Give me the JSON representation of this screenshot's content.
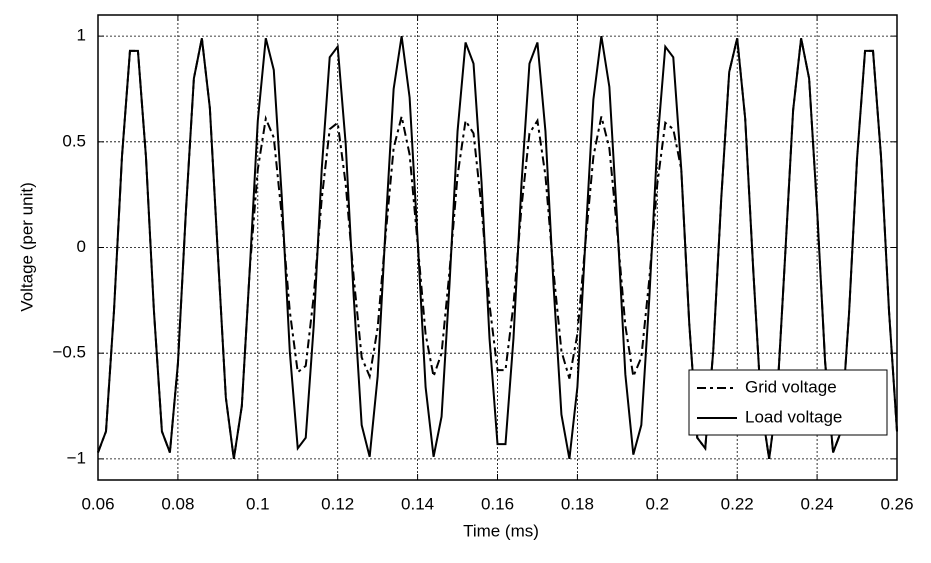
{
  "chart_data": {
    "type": "line",
    "xlabel": "Time (ms)",
    "ylabel": "Voltage (per unit)",
    "x": [
      0.06,
      0.062,
      0.064,
      0.066,
      0.068,
      0.07,
      0.072,
      0.074,
      0.076,
      0.078,
      0.08,
      0.082,
      0.084,
      0.086,
      0.088,
      0.09,
      0.092,
      0.094,
      0.096,
      0.098,
      0.1,
      0.102,
      0.104,
      0.106,
      0.108,
      0.11,
      0.112,
      0.114,
      0.116,
      0.118,
      0.12,
      0.122,
      0.124,
      0.126,
      0.128,
      0.13,
      0.132,
      0.134,
      0.136,
      0.138,
      0.14,
      0.142,
      0.144,
      0.146,
      0.148,
      0.15,
      0.152,
      0.154,
      0.156,
      0.158,
      0.16,
      0.162,
      0.164,
      0.166,
      0.168,
      0.17,
      0.172,
      0.174,
      0.176,
      0.178,
      0.18,
      0.182,
      0.184,
      0.186,
      0.188,
      0.19,
      0.192,
      0.194,
      0.196,
      0.198,
      0.2,
      0.202,
      0.204,
      0.206,
      0.208,
      0.21,
      0.212,
      0.214,
      0.216,
      0.218,
      0.22,
      0.222,
      0.224,
      0.226,
      0.228,
      0.23,
      0.232,
      0.234,
      0.236,
      0.238,
      0.24,
      0.242,
      0.244,
      0.246,
      0.248,
      0.25,
      0.252,
      0.254,
      0.256,
      0.258,
      0.26
    ],
    "series": [
      {
        "name": "Load voltage",
        "color": "#000000",
        "linestyle": "solid",
        "values": [
          -0.97,
          -0.87,
          -0.3,
          0.43,
          0.93,
          0.93,
          0.43,
          -0.3,
          -0.87,
          -0.97,
          -0.55,
          0.17,
          0.8,
          0.99,
          0.66,
          -0.03,
          -0.71,
          -1.0,
          -0.75,
          -0.1,
          0.6,
          0.99,
          0.84,
          0.24,
          -0.49,
          -0.95,
          -0.9,
          -0.37,
          0.37,
          0.9,
          0.95,
          0.49,
          -0.23,
          -0.84,
          -0.99,
          -0.61,
          0.1,
          0.75,
          1.0,
          0.71,
          0.04,
          -0.66,
          -0.99,
          -0.8,
          -0.17,
          0.55,
          0.97,
          0.87,
          0.31,
          -0.43,
          -0.93,
          -0.93,
          -0.43,
          0.3,
          0.87,
          0.97,
          0.55,
          -0.17,
          -0.79,
          -1.0,
          -0.66,
          0.03,
          0.7,
          1.0,
          0.76,
          0.11,
          -0.6,
          -0.98,
          -0.84,
          -0.24,
          0.49,
          0.95,
          0.9,
          0.37,
          -0.36,
          -0.9,
          -0.95,
          -0.49,
          0.23,
          0.83,
          0.99,
          0.61,
          -0.1,
          -0.75,
          -1.0,
          -0.71,
          -0.04,
          0.65,
          0.99,
          0.8,
          0.18,
          -0.54,
          -0.97,
          -0.87,
          -0.31,
          0.42,
          0.93,
          0.93,
          0.43,
          -0.3,
          -0.87
        ]
      },
      {
        "name": "Grid voltage",
        "color": "#000000",
        "linestyle": "dashed",
        "values": [
          -0.97,
          -0.87,
          -0.3,
          0.43,
          0.93,
          0.93,
          0.43,
          -0.3,
          -0.87,
          -0.97,
          -0.55,
          0.17,
          0.8,
          0.99,
          0.66,
          -0.03,
          -0.71,
          -1.0,
          -0.75,
          -0.1,
          0.37,
          0.61,
          0.52,
          0.15,
          -0.3,
          -0.59,
          -0.56,
          -0.23,
          0.23,
          0.56,
          0.59,
          0.3,
          -0.14,
          -0.52,
          -0.61,
          -0.38,
          0.06,
          0.47,
          0.62,
          0.44,
          0.02,
          -0.41,
          -0.61,
          -0.5,
          -0.11,
          0.34,
          0.6,
          0.54,
          0.19,
          -0.27,
          -0.58,
          -0.58,
          -0.27,
          0.19,
          0.54,
          0.6,
          0.34,
          -0.11,
          -0.49,
          -0.62,
          -0.41,
          0.02,
          0.43,
          0.62,
          0.47,
          0.07,
          -0.37,
          -0.61,
          -0.52,
          -0.15,
          0.3,
          0.59,
          0.56,
          0.37,
          -0.36,
          -0.9,
          -0.95,
          -0.49,
          0.23,
          0.83,
          0.99,
          0.61,
          -0.1,
          -0.75,
          -1.0,
          -0.71,
          -0.04,
          0.65,
          0.99,
          0.8,
          0.18,
          -0.54,
          -0.97,
          -0.87,
          -0.31,
          0.42,
          0.93,
          0.93,
          0.43,
          -0.3,
          -0.87
        ]
      }
    ],
    "legend_order": [
      1,
      0
    ],
    "legend": "lower right",
    "xlim": [
      0.06,
      0.26
    ],
    "ylim": [
      -1.1,
      1.1
    ],
    "xticks": [
      0.06,
      0.08,
      0.1,
      0.12,
      0.14,
      0.16,
      0.18,
      0.2,
      0.22,
      0.24,
      0.26
    ],
    "yticks": [
      {
        "value": -1,
        "label": "−1"
      },
      {
        "value": -0.5,
        "label": "−0.5"
      },
      0,
      0.5,
      1
    ],
    "grid": true
  }
}
